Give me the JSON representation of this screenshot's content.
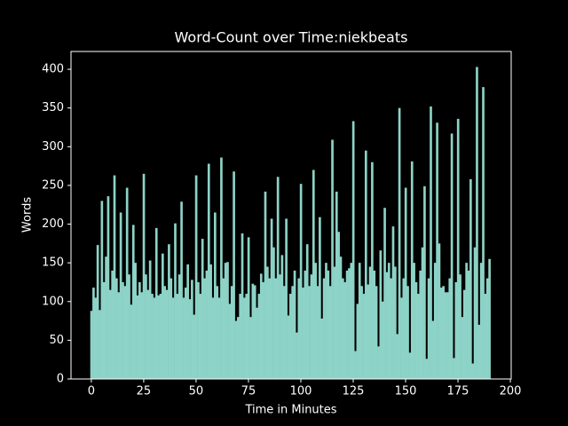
{
  "chart_data": {
    "type": "bar",
    "title": "Word-Count over Time:niekbeats",
    "x_label": "Time in Minutes",
    "y_label": "Words",
    "color": "#8dd3c7",
    "values": [
      88,
      118,
      105,
      173,
      89,
      230,
      125,
      158,
      236,
      115,
      140,
      263,
      130,
      112,
      215,
      125,
      120,
      247,
      135,
      96,
      199,
      150,
      108,
      125,
      112,
      265,
      135,
      115,
      153,
      110,
      105,
      195,
      108,
      110,
      162,
      120,
      115,
      174,
      130,
      105,
      201,
      110,
      135,
      229,
      105,
      118,
      148,
      103,
      128,
      83,
      263,
      125,
      110,
      181,
      130,
      140,
      278,
      148,
      105,
      215,
      120,
      105,
      286,
      130,
      150,
      151,
      97,
      120,
      268,
      75,
      80,
      110,
      188,
      105,
      110,
      183,
      80,
      123,
      121,
      92,
      110,
      136,
      125,
      242,
      145,
      130,
      207,
      170,
      130,
      261,
      135,
      160,
      120,
      207,
      82,
      110,
      120,
      140,
      60,
      130,
      252,
      118,
      140,
      174,
      120,
      135,
      270,
      150,
      120,
      209,
      78,
      130,
      150,
      140,
      120,
      309,
      145,
      242,
      190,
      158,
      130,
      125,
      140,
      143,
      150,
      333,
      36,
      97,
      150,
      120,
      110,
      295,
      122,
      145,
      280,
      140,
      120,
      42,
      166,
      100,
      221,
      138,
      150,
      130,
      197,
      145,
      58,
      350,
      105,
      130,
      247,
      120,
      34,
      281,
      150,
      125,
      110,
      140,
      170,
      249,
      26,
      130,
      352,
      75,
      150,
      331,
      175,
      118,
      120,
      112,
      112,
      130,
      317,
      27,
      125,
      336,
      135,
      80,
      115,
      150,
      140,
      258,
      20,
      170,
      403,
      70,
      150,
      377,
      110,
      130,
      155
    ],
    "xlim": [
      -9.7,
      200.4
    ],
    "xticks": [
      0,
      25,
      50,
      75,
      100,
      125,
      150,
      175,
      200
    ],
    "ylim": [
      0,
      423
    ],
    "yticks": [
      0,
      50,
      100,
      150,
      200,
      250,
      300,
      350,
      400
    ]
  }
}
